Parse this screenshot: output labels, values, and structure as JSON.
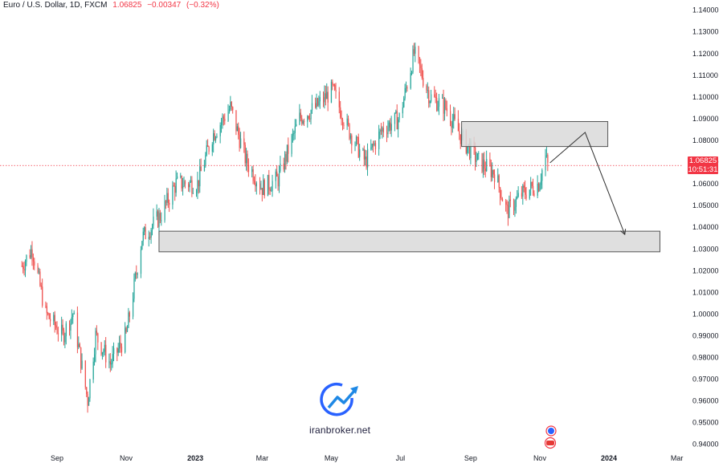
{
  "header": {
    "symbol": "Euro / U.S. Dollar, 1D, FXCM",
    "last": "1.06825",
    "change": "−0.00347",
    "change_pct": "(−0.32%)"
  },
  "price_tag": {
    "price": "1.06825",
    "countdown": "10:51:31"
  },
  "watermark": {
    "text": "iranbroker.net"
  },
  "colors": {
    "up": "#26a69a",
    "down": "#ef5350",
    "zone_fill": "#d9d9d9",
    "zone_stroke": "#555555",
    "last_price": "#f23645",
    "axis_text": "#131722"
  },
  "chart_data": {
    "type": "candlestick",
    "title": "",
    "xlabel": "",
    "ylabel": "",
    "ylim": [
      0.9375,
      1.1445
    ],
    "y_ticks": [
      "1.14000",
      "1.13000",
      "1.12000",
      "1.11000",
      "1.10000",
      "1.09000",
      "1.08000",
      "1.07000",
      "1.06000",
      "1.05000",
      "1.04000",
      "1.03000",
      "1.02000",
      "1.01000",
      "1.00000",
      "0.99000",
      "0.98000",
      "0.97000",
      "0.96000",
      "0.95000",
      "0.94000"
    ],
    "x_ticks": [
      "Sep",
      "Nov",
      "2023",
      "Mar",
      "May",
      "Jul",
      "Sep",
      "Nov",
      "2024",
      "Mar"
    ],
    "grid": false,
    "last_price": 1.06825,
    "close_path": [
      {
        "date": "2022-08-01",
        "close": 1.022
      },
      {
        "date": "2022-08-10",
        "close": 1.03
      },
      {
        "date": "2022-08-22",
        "close": 1.0
      },
      {
        "date": "2022-09-06",
        "close": 0.99
      },
      {
        "date": "2022-09-15",
        "close": 1.0
      },
      {
        "date": "2022-09-28",
        "close": 0.96
      },
      {
        "date": "2022-10-05",
        "close": 0.99
      },
      {
        "date": "2022-10-18",
        "close": 0.977
      },
      {
        "date": "2022-11-01",
        "close": 0.99
      },
      {
        "date": "2022-11-15",
        "close": 1.035
      },
      {
        "date": "2022-12-01",
        "close": 1.045
      },
      {
        "date": "2022-12-15",
        "close": 1.06
      },
      {
        "date": "2023-01-03",
        "close": 1.06
      },
      {
        "date": "2023-01-16",
        "close": 1.082
      },
      {
        "date": "2023-02-01",
        "close": 1.095
      },
      {
        "date": "2023-02-15",
        "close": 1.07
      },
      {
        "date": "2023-03-01",
        "close": 1.058
      },
      {
        "date": "2023-03-15",
        "close": 1.062
      },
      {
        "date": "2023-04-03",
        "close": 1.09
      },
      {
        "date": "2023-04-17",
        "close": 1.095
      },
      {
        "date": "2023-05-02",
        "close": 1.103
      },
      {
        "date": "2023-05-16",
        "close": 1.085
      },
      {
        "date": "2023-05-31",
        "close": 1.07
      },
      {
        "date": "2023-06-15",
        "close": 1.085
      },
      {
        "date": "2023-06-30",
        "close": 1.09
      },
      {
        "date": "2023-07-13",
        "close": 1.12
      },
      {
        "date": "2023-07-27",
        "close": 1.1
      },
      {
        "date": "2023-08-10",
        "close": 1.095
      },
      {
        "date": "2023-08-25",
        "close": 1.08
      },
      {
        "date": "2023-09-08",
        "close": 1.07
      },
      {
        "date": "2023-09-22",
        "close": 1.065
      },
      {
        "date": "2023-10-03",
        "close": 1.047
      },
      {
        "date": "2023-10-16",
        "close": 1.055
      },
      {
        "date": "2023-10-31",
        "close": 1.06
      },
      {
        "date": "2023-11-06",
        "close": 1.072
      },
      {
        "date": "2023-11-08",
        "close": 1.06825
      }
    ],
    "zones": [
      {
        "from": "2023-08-24",
        "to": "2023-12-31",
        "low": 1.077,
        "high": 1.0885
      },
      {
        "from": "2022-11-30",
        "to": "2024-02-15",
        "low": 1.0285,
        "high": 1.038
      }
    ],
    "projection": [
      {
        "date": "2023-11-10",
        "price": 1.0695
      },
      {
        "date": "2023-12-11",
        "price": 1.0835
      },
      {
        "date": "2024-01-15",
        "price": 1.0365
      }
    ]
  }
}
